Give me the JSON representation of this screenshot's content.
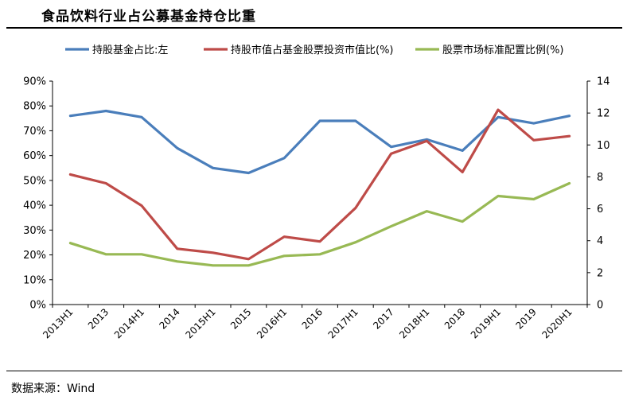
{
  "title": "食品饮料行业占公募基金持仓比重",
  "source": "数据来源：Wind",
  "chart_data": {
    "type": "line",
    "categories": [
      "2013H1",
      "2013",
      "2014H1",
      "2014",
      "2015H1",
      "2015",
      "2016H1",
      "2016",
      "2017H1",
      "2017",
      "2018H1",
      "2018",
      "2019H1",
      "2019",
      "2020H1"
    ],
    "left_axis": {
      "ylim": [
        0,
        90
      ],
      "ticks": [
        "0%",
        "10%",
        "20%",
        "30%",
        "40%",
        "50%",
        "60%",
        "70%",
        "80%",
        "90%"
      ]
    },
    "right_axis": {
      "ylim": [
        0,
        14
      ],
      "ticks": [
        "0",
        "2",
        "4",
        "6",
        "8",
        "10",
        "12",
        "14"
      ]
    },
    "series": [
      {
        "name": "持股基金占比:左",
        "axis": "left",
        "color": "#4a7ebb",
        "values": [
          76,
          78,
          75.5,
          63,
          55,
          53,
          59,
          74,
          74,
          63.5,
          66.5,
          62,
          75.5,
          73,
          76
        ]
      },
      {
        "name": "持股市值占基金股票投资市值比(%)",
        "axis": "right",
        "color": "#be4b48",
        "values": [
          8.15,
          7.6,
          6.2,
          3.5,
          3.25,
          2.85,
          4.25,
          3.95,
          6.05,
          9.45,
          10.25,
          8.3,
          12.2,
          10.3,
          10.55
        ]
      },
      {
        "name": "股票市场标准配置比例(%)",
        "axis": "right",
        "color": "#98b954",
        "values": [
          3.85,
          3.15,
          3.15,
          2.7,
          2.45,
          2.45,
          3.05,
          3.15,
          3.9,
          4.9,
          5.85,
          5.2,
          6.8,
          6.6,
          7.6
        ]
      }
    ],
    "grid": false,
    "legend_position": "top"
  }
}
